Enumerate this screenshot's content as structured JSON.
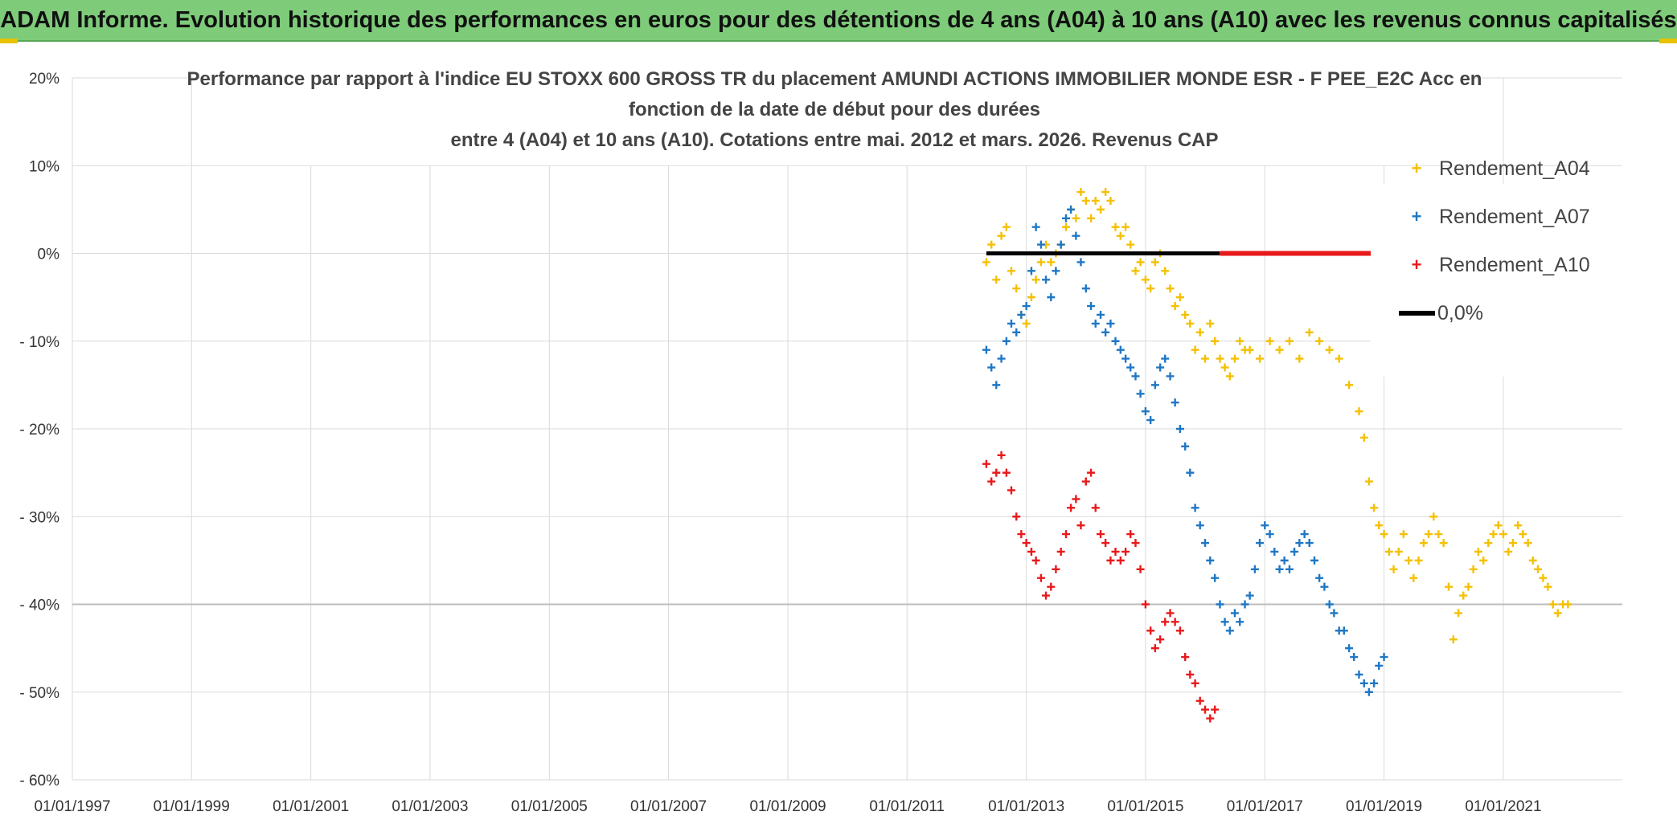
{
  "banner": {
    "title": "ADAM Informe. Evolution historique des performances en euros pour des détentions de 4 ans (A04) à 10 ans (A10) avec les revenus connus capitalisés"
  },
  "chart_data": {
    "type": "scatter",
    "title_lines": [
      "Performance par rapport à l'indice EU STOXX 600 GROSS TR  du placement AMUNDI ACTIONS IMMOBILIER MONDE ESR - F PEE_E2C Acc en",
      "fonction de la date de début pour des durées",
      "entre 4 (A04) et 10 ans (A10). Cotations entre mai. 2012 et mars. 2026. Revenus CAP"
    ],
    "x_range": [
      "1997-01-01",
      "2022-12-31"
    ],
    "x_tick_labels": [
      "01/01/1997",
      "01/01/1999",
      "01/01/2001",
      "01/01/2003",
      "01/01/2005",
      "01/01/2007",
      "01/01/2009",
      "01/01/2011",
      "01/01/2013",
      "01/01/2015",
      "01/01/2017",
      "01/01/2019",
      "01/01/2021"
    ],
    "ylim": [
      -60,
      20
    ],
    "y_tick_values": [
      20,
      10,
      0,
      -10,
      -20,
      -30,
      -40,
      -50,
      -60
    ],
    "y_tick_labels": [
      "20%",
      "10%",
      "0%",
      "- 10%",
      "- 20%",
      "- 30%",
      "- 40%",
      "- 50%",
      "- 60%"
    ],
    "grid": true,
    "legend_position": "top-right",
    "series": [
      {
        "name": "Rendement_A04",
        "color": "#f5c000",
        "marker": "+",
        "points": [
          [
            "2012-05-01",
            -1
          ],
          [
            "2012-06-01",
            1
          ],
          [
            "2012-07-01",
            -3
          ],
          [
            "2012-08-01",
            2
          ],
          [
            "2012-09-01",
            3
          ],
          [
            "2012-10-01",
            -2
          ],
          [
            "2012-11-01",
            -4
          ],
          [
            "2012-12-01",
            -7
          ],
          [
            "2013-01-01",
            -8
          ],
          [
            "2013-02-01",
            -5
          ],
          [
            "2013-03-01",
            -3
          ],
          [
            "2013-04-01",
            -1
          ],
          [
            "2013-05-01",
            1
          ],
          [
            "2013-06-01",
            -1
          ],
          [
            "2013-07-01",
            0
          ],
          [
            "2013-08-01",
            1
          ],
          [
            "2013-09-01",
            3
          ],
          [
            "2013-10-01",
            5
          ],
          [
            "2013-11-01",
            4
          ],
          [
            "2013-12-01",
            7
          ],
          [
            "2014-01-01",
            6
          ],
          [
            "2014-02-01",
            4
          ],
          [
            "2014-03-01",
            6
          ],
          [
            "2014-04-01",
            5
          ],
          [
            "2014-05-01",
            7
          ],
          [
            "2014-06-01",
            6
          ],
          [
            "2014-07-01",
            3
          ],
          [
            "2014-08-01",
            2
          ],
          [
            "2014-09-01",
            3
          ],
          [
            "2014-10-01",
            1
          ],
          [
            "2014-11-01",
            -2
          ],
          [
            "2014-12-01",
            -1
          ],
          [
            "2015-01-01",
            -3
          ],
          [
            "2015-02-01",
            -4
          ],
          [
            "2015-03-01",
            -1
          ],
          [
            "2015-04-01",
            0
          ],
          [
            "2015-05-01",
            -2
          ],
          [
            "2015-06-01",
            -4
          ],
          [
            "2015-07-01",
            -6
          ],
          [
            "2015-08-01",
            -5
          ],
          [
            "2015-09-01",
            -7
          ],
          [
            "2015-10-01",
            -8
          ],
          [
            "2015-11-01",
            -11
          ],
          [
            "2015-12-01",
            -9
          ],
          [
            "2016-01-01",
            -12
          ],
          [
            "2016-02-01",
            -8
          ],
          [
            "2016-03-01",
            -10
          ],
          [
            "2016-04-01",
            -12
          ],
          [
            "2016-05-01",
            -13
          ],
          [
            "2016-06-01",
            -14
          ],
          [
            "2016-07-01",
            -12
          ],
          [
            "2016-08-01",
            -10
          ],
          [
            "2016-09-01",
            -11
          ],
          [
            "2016-10-01",
            -11
          ],
          [
            "2016-12-01",
            -12
          ],
          [
            "2017-02-01",
            -10
          ],
          [
            "2017-04-01",
            -11
          ],
          [
            "2017-06-01",
            -10
          ],
          [
            "2017-08-01",
            -12
          ],
          [
            "2017-10-01",
            -9
          ],
          [
            "2017-12-01",
            -10
          ],
          [
            "2018-02-01",
            -11
          ],
          [
            "2018-04-01",
            -12
          ],
          [
            "2018-06-01",
            -15
          ],
          [
            "2018-08-01",
            -18
          ],
          [
            "2018-09-01",
            -21
          ],
          [
            "2018-10-01",
            -26
          ],
          [
            "2018-11-01",
            -29
          ],
          [
            "2018-12-01",
            -31
          ],
          [
            "2019-01-01",
            -32
          ],
          [
            "2019-02-01",
            -34
          ],
          [
            "2019-03-01",
            -36
          ],
          [
            "2019-04-01",
            -34
          ],
          [
            "2019-05-01",
            -32
          ],
          [
            "2019-06-01",
            -35
          ],
          [
            "2019-07-01",
            -37
          ],
          [
            "2019-08-01",
            -35
          ],
          [
            "2019-09-01",
            -33
          ],
          [
            "2019-10-01",
            -32
          ],
          [
            "2019-11-01",
            -30
          ],
          [
            "2019-12-01",
            -32
          ],
          [
            "2020-01-01",
            -33
          ],
          [
            "2020-02-01",
            -38
          ],
          [
            "2020-03-01",
            -44
          ],
          [
            "2020-04-01",
            -41
          ],
          [
            "2020-05-01",
            -39
          ],
          [
            "2020-06-01",
            -38
          ],
          [
            "2020-07-01",
            -36
          ],
          [
            "2020-08-01",
            -34
          ],
          [
            "2020-09-01",
            -35
          ],
          [
            "2020-10-01",
            -33
          ],
          [
            "2020-11-01",
            -32
          ],
          [
            "2020-12-01",
            -31
          ],
          [
            "2021-01-01",
            -32
          ],
          [
            "2021-02-01",
            -34
          ],
          [
            "2021-03-01",
            -33
          ],
          [
            "2021-04-01",
            -31
          ],
          [
            "2021-05-01",
            -32
          ],
          [
            "2021-06-01",
            -33
          ],
          [
            "2021-07-01",
            -35
          ],
          [
            "2021-08-01",
            -36
          ],
          [
            "2021-09-01",
            -37
          ],
          [
            "2021-10-01",
            -38
          ],
          [
            "2021-11-01",
            -40
          ],
          [
            "2021-12-01",
            -41
          ],
          [
            "2022-01-01",
            -40
          ],
          [
            "2022-02-01",
            -40
          ]
        ]
      },
      {
        "name": "Rendement_A07",
        "color": "#1f77c4",
        "marker": "+",
        "points": [
          [
            "2012-05-01",
            -11
          ],
          [
            "2012-06-01",
            -13
          ],
          [
            "2012-07-01",
            -15
          ],
          [
            "2012-08-01",
            -12
          ],
          [
            "2012-09-01",
            -10
          ],
          [
            "2012-10-01",
            -8
          ],
          [
            "2012-11-01",
            -9
          ],
          [
            "2012-12-01",
            -7
          ],
          [
            "2013-01-01",
            -6
          ],
          [
            "2013-02-01",
            -2
          ],
          [
            "2013-03-01",
            3
          ],
          [
            "2013-04-01",
            1
          ],
          [
            "2013-05-01",
            -3
          ],
          [
            "2013-06-01",
            -5
          ],
          [
            "2013-07-01",
            -2
          ],
          [
            "2013-08-01",
            1
          ],
          [
            "2013-09-01",
            4
          ],
          [
            "2013-10-01",
            5
          ],
          [
            "2013-11-01",
            2
          ],
          [
            "2013-12-01",
            -1
          ],
          [
            "2014-01-01",
            -4
          ],
          [
            "2014-02-01",
            -6
          ],
          [
            "2014-03-01",
            -8
          ],
          [
            "2014-04-01",
            -7
          ],
          [
            "2014-05-01",
            -9
          ],
          [
            "2014-06-01",
            -8
          ],
          [
            "2014-07-01",
            -10
          ],
          [
            "2014-08-01",
            -11
          ],
          [
            "2014-09-01",
            -12
          ],
          [
            "2014-10-01",
            -13
          ],
          [
            "2014-11-01",
            -14
          ],
          [
            "2014-12-01",
            -16
          ],
          [
            "2015-01-01",
            -18
          ],
          [
            "2015-02-01",
            -19
          ],
          [
            "2015-03-01",
            -15
          ],
          [
            "2015-04-01",
            -13
          ],
          [
            "2015-05-01",
            -12
          ],
          [
            "2015-06-01",
            -14
          ],
          [
            "2015-07-01",
            -17
          ],
          [
            "2015-08-01",
            -20
          ],
          [
            "2015-09-01",
            -22
          ],
          [
            "2015-10-01",
            -25
          ],
          [
            "2015-11-01",
            -29
          ],
          [
            "2015-12-01",
            -31
          ],
          [
            "2016-01-01",
            -33
          ],
          [
            "2016-02-01",
            -35
          ],
          [
            "2016-03-01",
            -37
          ],
          [
            "2016-04-01",
            -40
          ],
          [
            "2016-05-01",
            -42
          ],
          [
            "2016-06-01",
            -43
          ],
          [
            "2016-07-01",
            -41
          ],
          [
            "2016-08-01",
            -42
          ],
          [
            "2016-09-01",
            -40
          ],
          [
            "2016-10-01",
            -39
          ],
          [
            "2016-11-01",
            -36
          ],
          [
            "2016-12-01",
            -33
          ],
          [
            "2017-01-01",
            -31
          ],
          [
            "2017-02-01",
            -32
          ],
          [
            "2017-03-01",
            -34
          ],
          [
            "2017-04-01",
            -36
          ],
          [
            "2017-05-01",
            -35
          ],
          [
            "2017-06-01",
            -36
          ],
          [
            "2017-07-01",
            -34
          ],
          [
            "2017-08-01",
            -33
          ],
          [
            "2017-09-01",
            -32
          ],
          [
            "2017-10-01",
            -33
          ],
          [
            "2017-11-01",
            -35
          ],
          [
            "2017-12-01",
            -37
          ],
          [
            "2018-01-01",
            -38
          ],
          [
            "2018-02-01",
            -40
          ],
          [
            "2018-03-01",
            -41
          ],
          [
            "2018-04-01",
            -43
          ],
          [
            "2018-05-01",
            -43
          ],
          [
            "2018-06-01",
            -45
          ],
          [
            "2018-07-01",
            -46
          ],
          [
            "2018-08-01",
            -48
          ],
          [
            "2018-09-01",
            -49
          ],
          [
            "2018-10-01",
            -50
          ],
          [
            "2018-11-01",
            -49
          ],
          [
            "2018-12-01",
            -47
          ],
          [
            "2019-01-01",
            -46
          ]
        ]
      },
      {
        "name": "Rendement_A10",
        "color": "#e8191b",
        "marker": "+",
        "points": [
          [
            "2012-05-01",
            -24
          ],
          [
            "2012-06-01",
            -26
          ],
          [
            "2012-07-01",
            -25
          ],
          [
            "2012-08-01",
            -23
          ],
          [
            "2012-09-01",
            -25
          ],
          [
            "2012-10-01",
            -27
          ],
          [
            "2012-11-01",
            -30
          ],
          [
            "2012-12-01",
            -32
          ],
          [
            "2013-01-01",
            -33
          ],
          [
            "2013-02-01",
            -34
          ],
          [
            "2013-03-01",
            -35
          ],
          [
            "2013-04-01",
            -37
          ],
          [
            "2013-05-01",
            -39
          ],
          [
            "2013-06-01",
            -38
          ],
          [
            "2013-07-01",
            -36
          ],
          [
            "2013-08-01",
            -34
          ],
          [
            "2013-09-01",
            -32
          ],
          [
            "2013-10-01",
            -29
          ],
          [
            "2013-11-01",
            -28
          ],
          [
            "2013-12-01",
            -31
          ],
          [
            "2014-01-01",
            -26
          ],
          [
            "2014-02-01",
            -25
          ],
          [
            "2014-03-01",
            -29
          ],
          [
            "2014-04-01",
            -32
          ],
          [
            "2014-05-01",
            -33
          ],
          [
            "2014-06-01",
            -35
          ],
          [
            "2014-07-01",
            -34
          ],
          [
            "2014-08-01",
            -35
          ],
          [
            "2014-09-01",
            -34
          ],
          [
            "2014-10-01",
            -32
          ],
          [
            "2014-11-01",
            -33
          ],
          [
            "2014-12-01",
            -36
          ],
          [
            "2015-01-01",
            -40
          ],
          [
            "2015-02-01",
            -43
          ],
          [
            "2015-03-01",
            -45
          ],
          [
            "2015-04-01",
            -44
          ],
          [
            "2015-05-01",
            -42
          ],
          [
            "2015-06-01",
            -41
          ],
          [
            "2015-07-01",
            -42
          ],
          [
            "2015-08-01",
            -43
          ],
          [
            "2015-09-01",
            -46
          ],
          [
            "2015-10-01",
            -48
          ],
          [
            "2015-11-01",
            -49
          ],
          [
            "2015-12-01",
            -51
          ],
          [
            "2016-01-01",
            -52
          ],
          [
            "2016-02-01",
            -53
          ],
          [
            "2016-03-01",
            -52
          ]
        ]
      },
      {
        "name": "0,0%",
        "color": "#000000",
        "marker": "line",
        "points": [
          [
            "2012-05-01",
            0
          ],
          [
            "2016-03-31",
            0
          ]
        ]
      }
    ],
    "zero_line_extension": {
      "color": "#e8191b",
      "points": [
        [
          "2016-04-01",
          0
        ],
        [
          "2022-12-31",
          0
        ]
      ]
    }
  }
}
